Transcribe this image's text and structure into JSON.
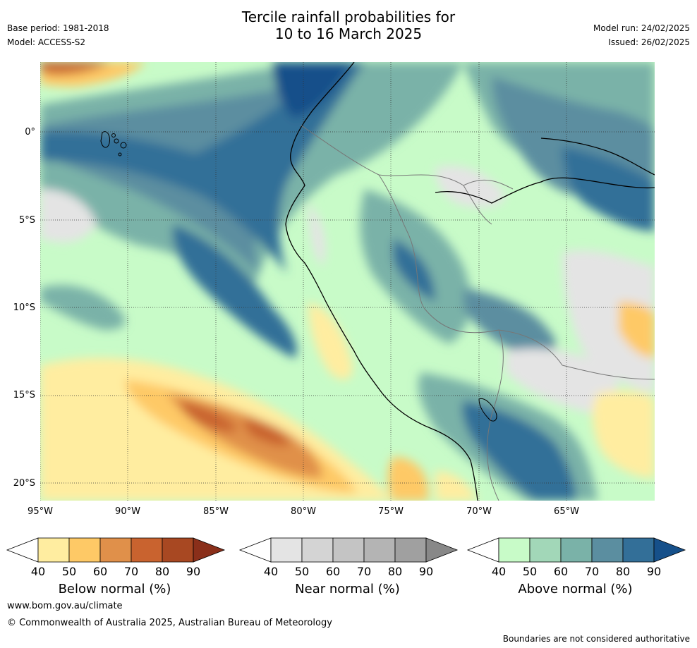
{
  "title_line1": "Tercile rainfall probabilities for",
  "title_line2": "10 to 16 March 2025",
  "meta_left": {
    "base_period": "Base period: 1981-2018",
    "model": "Model: ACCESS-S2"
  },
  "meta_right": {
    "model_run": "Model run: 24/02/2025",
    "issued": "Issued: 26/02/2025"
  },
  "lat_labels": [
    "0°",
    "5°S",
    "10°S",
    "15°S",
    "20°S"
  ],
  "lon_labels": [
    "95°W",
    "90°W",
    "85°W",
    "80°W",
    "75°W",
    "70°W",
    "65°W"
  ],
  "colorbars": [
    {
      "label": "Below normal (%)",
      "ticks": [
        "40",
        "50",
        "60",
        "70",
        "80",
        "90"
      ],
      "colors": [
        "#ffeda0",
        "#fec966",
        "#e0904a",
        "#c9632f",
        "#a84822",
        "#8a2f1a"
      ]
    },
    {
      "label": "Near normal (%)",
      "ticks": [
        "40",
        "50",
        "60",
        "70",
        "80",
        "90"
      ],
      "colors": [
        "#e4e4e4",
        "#d4d4d4",
        "#c4c4c4",
        "#b4b4b4",
        "#a0a0a0",
        "#888888"
      ]
    },
    {
      "label": "Above normal (%)",
      "ticks": [
        "40",
        "50",
        "60",
        "70",
        "80",
        "90"
      ],
      "colors": [
        "#c8fbc8",
        "#a2d7b8",
        "#7ab2a8",
        "#5b8ea0",
        "#336f98",
        "#16508a"
      ]
    }
  ],
  "footer": {
    "url": "www.bom.gov.au/climate",
    "copyright": "© Commonwealth of Australia 2025, Australian Bureau of Meteorology",
    "disclaimer": "Boundaries are not considered authoritative"
  }
}
